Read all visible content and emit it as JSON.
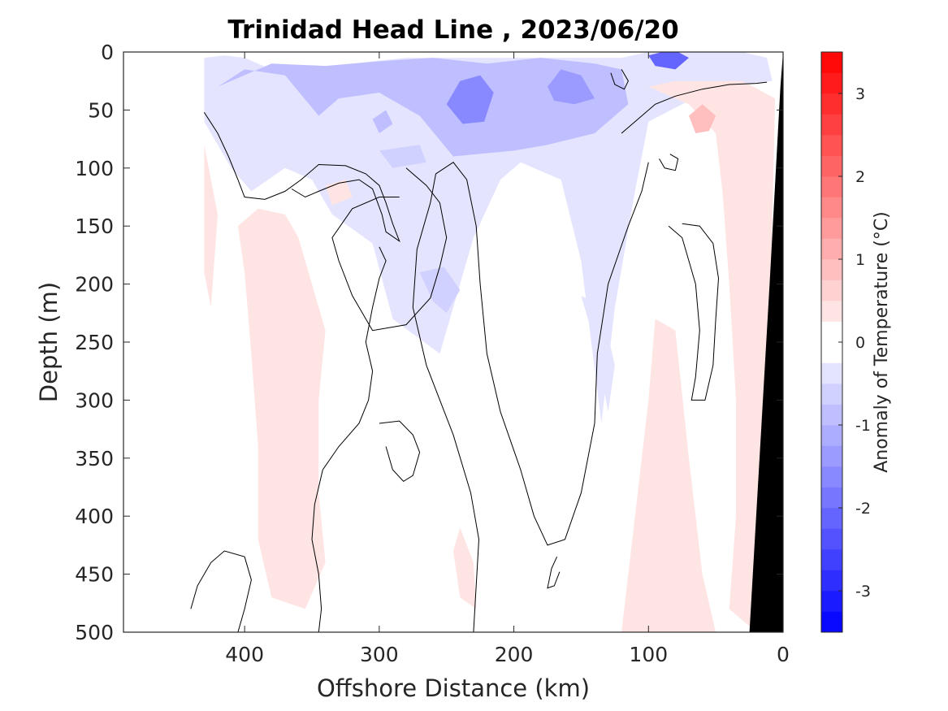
{
  "chart_data": {
    "type": "heatmap",
    "title": "Trinidad Head Line , 2023/06/20",
    "xlabel": "Offshore Distance (km)",
    "ylabel": "Depth (m)",
    "xlim": [
      490,
      0
    ],
    "ylim": [
      0,
      500
    ],
    "x_reversed": true,
    "y_reversed": true,
    "xticks": [
      400,
      300,
      200,
      100,
      0
    ],
    "yticks": [
      0,
      50,
      100,
      150,
      200,
      250,
      300,
      350,
      400,
      450,
      500
    ],
    "colorbar": {
      "label": "Anomaly of Temperature (°C)",
      "range": [
        -3.5,
        3.5
      ],
      "step": 0.25,
      "ticks": [
        -3,
        -2,
        -1,
        0,
        1,
        2,
        3
      ],
      "tick_labels": [
        "-3",
        "-2",
        "-1",
        "0",
        "1",
        "2",
        "3"
      ],
      "cmap": "blue-white-red",
      "low_color": "#0000ff",
      "high_color": "#ff0000"
    },
    "data_extent_km": [
      430,
      0
    ],
    "bottom_topography_color": "#000000",
    "bottom_topography": [
      [
        25,
        500
      ],
      [
        10,
        200
      ],
      [
        2,
        30
      ],
      [
        0,
        0
      ],
      [
        0,
        500
      ]
    ],
    "zero_contour_color": "#000000",
    "regions": [
      {
        "kind": "cold",
        "anomaly": -0.5,
        "points": [
          [
            430,
            5
          ],
          [
            415,
            3
          ],
          [
            400,
            5
          ],
          [
            380,
            15
          ],
          [
            340,
            20
          ],
          [
            320,
            10
          ],
          [
            280,
            5
          ],
          [
            220,
            5
          ],
          [
            160,
            5
          ],
          [
            120,
            5
          ],
          [
            100,
            0
          ],
          [
            30,
            0
          ],
          [
            12,
            5
          ],
          [
            8,
            25
          ],
          [
            50,
            30
          ],
          [
            100,
            60
          ],
          [
            110,
            120
          ],
          [
            125,
            220
          ],
          [
            135,
            320
          ],
          [
            150,
            180
          ],
          [
            165,
            110
          ],
          [
            195,
            95
          ],
          [
            210,
            110
          ],
          [
            230,
            160
          ],
          [
            255,
            260
          ],
          [
            290,
            230
          ],
          [
            305,
            165
          ],
          [
            335,
            140
          ],
          [
            350,
            110
          ],
          [
            370,
            100
          ],
          [
            395,
            120
          ],
          [
            410,
            100
          ],
          [
            430,
            60
          ]
        ]
      },
      {
        "kind": "cold",
        "anomaly": -1.0,
        "points": [
          [
            420,
            30
          ],
          [
            400,
            15
          ],
          [
            370,
            20
          ],
          [
            345,
            55
          ],
          [
            330,
            40
          ],
          [
            300,
            35
          ],
          [
            270,
            55
          ],
          [
            245,
            90
          ],
          [
            200,
            85
          ],
          [
            175,
            80
          ],
          [
            140,
            70
          ],
          [
            115,
            45
          ],
          [
            120,
            15
          ],
          [
            140,
            10
          ],
          [
            180,
            5
          ],
          [
            220,
            10
          ],
          [
            260,
            5
          ],
          [
            300,
            8
          ],
          [
            340,
            12
          ],
          [
            380,
            10
          ]
        ]
      },
      {
        "kind": "cold",
        "anomaly": -1.75,
        "points": [
          [
            250,
            45
          ],
          [
            240,
            25
          ],
          [
            225,
            20
          ],
          [
            215,
            35
          ],
          [
            222,
            60
          ],
          [
            238,
            62
          ]
        ]
      },
      {
        "kind": "cold",
        "anomaly": -1.5,
        "points": [
          [
            175,
            30
          ],
          [
            165,
            15
          ],
          [
            150,
            20
          ],
          [
            140,
            40
          ],
          [
            155,
            45
          ],
          [
            170,
            42
          ]
        ]
      },
      {
        "kind": "cold",
        "anomaly": -2.25,
        "points": [
          [
            100,
            3
          ],
          [
            90,
            0
          ],
          [
            78,
            0
          ],
          [
            70,
            5
          ],
          [
            80,
            15
          ],
          [
            95,
            12
          ]
        ]
      },
      {
        "kind": "cold",
        "anomaly": -1.0,
        "points": [
          [
            295,
            50
          ],
          [
            290,
            62
          ],
          [
            300,
            70
          ],
          [
            305,
            58
          ]
        ]
      },
      {
        "kind": "cold",
        "anomaly": -0.75,
        "points": [
          [
            270,
            80
          ],
          [
            265,
            95
          ],
          [
            290,
            100
          ],
          [
            300,
            85
          ]
        ]
      },
      {
        "kind": "cold",
        "anomaly": -0.6,
        "points": [
          [
            270,
            190
          ],
          [
            260,
            215
          ],
          [
            250,
            225
          ],
          [
            240,
            205
          ],
          [
            252,
            185
          ]
        ]
      },
      {
        "kind": "cold",
        "anomaly": -0.5,
        "points": [
          [
            150,
            210
          ],
          [
            140,
            250
          ],
          [
            130,
            310
          ],
          [
            125,
            270
          ],
          [
            135,
            220
          ]
        ]
      },
      {
        "kind": "warm",
        "anomaly": 0.4,
        "points": [
          [
            430,
            80
          ],
          [
            420,
            140
          ],
          [
            425,
            220
          ],
          [
            430,
            190
          ]
        ]
      },
      {
        "kind": "warm",
        "anomaly": 0.4,
        "points": [
          [
            405,
            150
          ],
          [
            390,
            135
          ],
          [
            370,
            140
          ],
          [
            360,
            160
          ],
          [
            340,
            240
          ],
          [
            345,
            300
          ],
          [
            345,
            380
          ],
          [
            340,
            440
          ],
          [
            355,
            480
          ],
          [
            380,
            470
          ],
          [
            390,
            420
          ],
          [
            390,
            340
          ],
          [
            395,
            260
          ],
          [
            400,
            190
          ]
        ]
      },
      {
        "kind": "warm",
        "anomaly": 0.4,
        "points": [
          [
            340,
            115
          ],
          [
            325,
            110
          ],
          [
            320,
            125
          ],
          [
            335,
            132
          ]
        ]
      },
      {
        "kind": "warm",
        "anomaly": 0.4,
        "points": [
          [
            120,
            500
          ],
          [
            110,
            400
          ],
          [
            100,
            300
          ],
          [
            95,
            230
          ],
          [
            80,
            240
          ],
          [
            70,
            350
          ],
          [
            60,
            450
          ],
          [
            50,
            500
          ]
        ]
      },
      {
        "kind": "warm",
        "anomaly": 0.4,
        "points": [
          [
            100,
            30
          ],
          [
            70,
            45
          ],
          [
            50,
            70
          ],
          [
            45,
            120
          ],
          [
            40,
            200
          ],
          [
            35,
            300
          ],
          [
            35,
            400
          ],
          [
            40,
            480
          ],
          [
            20,
            500
          ],
          [
            12,
            300
          ],
          [
            8,
            150
          ],
          [
            6,
            40
          ],
          [
            30,
            25
          ],
          [
            80,
            25
          ]
        ]
      },
      {
        "kind": "warm",
        "anomaly": 0.75,
        "points": [
          [
            70,
            55
          ],
          [
            60,
            45
          ],
          [
            50,
            55
          ],
          [
            55,
            68
          ],
          [
            65,
            70
          ]
        ]
      },
      {
        "kind": "warm",
        "anomaly": 0.4,
        "points": [
          [
            240,
            410
          ],
          [
            230,
            440
          ],
          [
            228,
            480
          ],
          [
            240,
            470
          ],
          [
            245,
            430
          ]
        ]
      }
    ],
    "zero_contours": [
      [
        [
          430,
          52
        ],
        [
          420,
          70
        ],
        [
          412,
          90
        ],
        [
          405,
          110
        ],
        [
          400,
          125
        ],
        [
          385,
          127
        ],
        [
          370,
          120
        ],
        [
          358,
          110
        ],
        [
          345,
          97
        ],
        [
          325,
          98
        ],
        [
          310,
          105
        ],
        [
          300,
          115
        ],
        [
          295,
          130
        ],
        [
          290,
          148
        ],
        [
          285,
          163
        ],
        [
          295,
          155
        ],
        [
          298,
          140
        ],
        [
          305,
          118
        ],
        [
          315,
          110
        ],
        [
          330,
          113
        ],
        [
          345,
          120
        ],
        [
          355,
          125
        ],
        [
          365,
          118
        ]
      ],
      [
        [
          300,
          168
        ],
        [
          295,
          180
        ],
        [
          300,
          195
        ],
        [
          305,
          220
        ],
        [
          310,
          250
        ],
        [
          305,
          275
        ],
        [
          308,
          300
        ],
        [
          315,
          320
        ],
        [
          330,
          340
        ],
        [
          342,
          360
        ],
        [
          348,
          390
        ],
        [
          350,
          420
        ],
        [
          345,
          450
        ],
        [
          343,
          480
        ],
        [
          345,
          500
        ]
      ],
      [
        [
          280,
          100
        ],
        [
          265,
          115
        ],
        [
          255,
          130
        ],
        [
          250,
          160
        ],
        [
          255,
          185
        ],
        [
          262,
          212
        ],
        [
          280,
          235
        ],
        [
          305,
          240
        ],
        [
          320,
          210
        ],
        [
          330,
          180
        ],
        [
          335,
          160
        ],
        [
          320,
          135
        ],
        [
          300,
          125
        ],
        [
          285,
          125
        ]
      ],
      [
        [
          440,
          480
        ],
        [
          435,
          460
        ],
        [
          425,
          440
        ],
        [
          415,
          430
        ],
        [
          400,
          435
        ],
        [
          395,
          455
        ],
        [
          400,
          480
        ],
        [
          405,
          500
        ]
      ],
      [
        [
          300,
          320
        ],
        [
          285,
          318
        ],
        [
          275,
          330
        ],
        [
          270,
          345
        ],
        [
          275,
          365
        ],
        [
          282,
          370
        ],
        [
          290,
          360
        ],
        [
          295,
          340
        ]
      ],
      [
        [
          230,
          500
        ],
        [
          228,
          460
        ],
        [
          226,
          420
        ],
        [
          232,
          380
        ],
        [
          245,
          330
        ],
        [
          265,
          270
        ],
        [
          275,
          220
        ],
        [
          272,
          170
        ],
        [
          262,
          130
        ],
        [
          258,
          105
        ],
        [
          245,
          95
        ],
        [
          235,
          110
        ],
        [
          228,
          150
        ],
        [
          225,
          200
        ],
        [
          220,
          260
        ],
        [
          210,
          310
        ],
        [
          195,
          360
        ],
        [
          185,
          400
        ],
        [
          175,
          425
        ],
        [
          162,
          420
        ],
        [
          150,
          380
        ],
        [
          140,
          320
        ],
        [
          138,
          260
        ],
        [
          130,
          200
        ],
        [
          115,
          150
        ],
        [
          105,
          120
        ],
        [
          100,
          95
        ]
      ],
      [
        [
          168,
          435
        ],
        [
          172,
          445
        ],
        [
          175,
          462
        ],
        [
          170,
          460
        ],
        [
          166,
          448
        ]
      ],
      [
        [
          84,
          88
        ],
        [
          78,
          92
        ],
        [
          80,
          102
        ],
        [
          88,
          100
        ],
        [
          92,
          92
        ]
      ],
      [
        [
          85,
          150
        ],
        [
          75,
          160
        ],
        [
          70,
          180
        ],
        [
          65,
          200
        ],
        [
          62,
          240
        ],
        [
          65,
          280
        ],
        [
          68,
          300
        ],
        [
          58,
          300
        ],
        [
          52,
          270
        ],
        [
          50,
          230
        ],
        [
          48,
          195
        ],
        [
          52,
          165
        ],
        [
          62,
          150
        ],
        [
          75,
          148
        ]
      ],
      [
        [
          120,
          15
        ],
        [
          115,
          25
        ],
        [
          118,
          32
        ],
        [
          125,
          28
        ],
        [
          128,
          18
        ]
      ],
      [
        [
          120,
          70
        ],
        [
          110,
          60
        ],
        [
          95,
          45
        ],
        [
          80,
          38
        ],
        [
          60,
          32
        ],
        [
          40,
          28
        ],
        [
          20,
          27
        ],
        [
          12,
          26
        ]
      ]
    ]
  }
}
